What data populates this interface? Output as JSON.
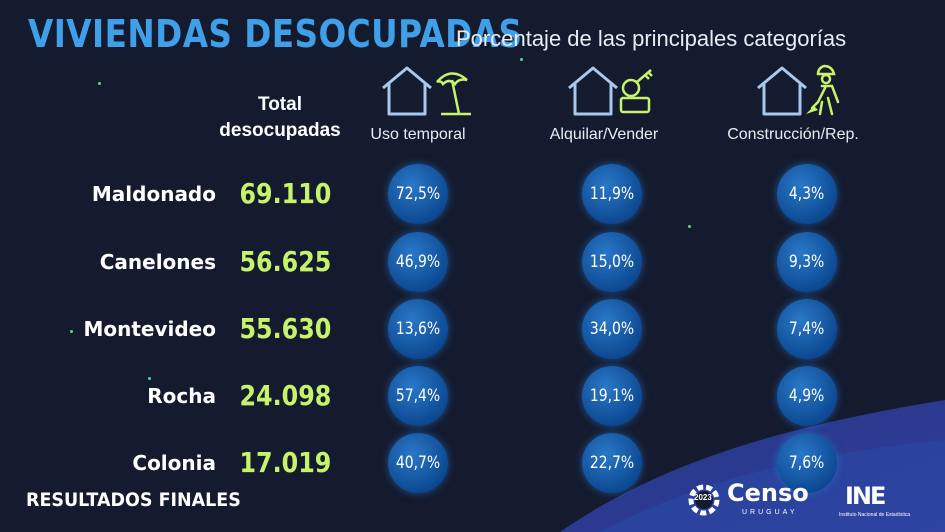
{
  "title": "VIVIENDAS DESOCUPADAS",
  "subtitle": "Porcentaje de las principales categorías",
  "total_header": [
    "Total",
    "desocupadas"
  ],
  "categories": [
    {
      "label": "Uso temporal",
      "icon": "house-umbrella-icon"
    },
    {
      "label": "Alquilar/Vender",
      "icon": "house-key-icon"
    },
    {
      "label": "Construcción/Rep.",
      "icon": "house-worker-icon"
    }
  ],
  "footer": "RESULTADOS FINALES",
  "logos": {
    "censo": {
      "word": "Censo",
      "year": "2023",
      "sub": "URUGUAY"
    },
    "ine": {
      "word": "INE",
      "sub": "Instituto Nacional de Estadística"
    }
  },
  "colors": {
    "background": "#141b2e",
    "title": "#3f9fe8",
    "total_value": "#c7f36a",
    "bubble": "#0d4a93",
    "icon_house": "#a9c8ee",
    "icon_accent": "#c7f36a"
  },
  "chart_data": {
    "type": "table",
    "rows": [
      {
        "label": "Maldonado",
        "total": "69.110",
        "values": [
          "72,5%",
          "11,9%",
          "4,3%"
        ]
      },
      {
        "label": "Canelones",
        "total": "56.625",
        "values": [
          "46,9%",
          "15,0%",
          "9,3%"
        ]
      },
      {
        "label": "Montevideo",
        "total": "55.630",
        "values": [
          "13,6%",
          "34,0%",
          "7,4%"
        ]
      },
      {
        "label": "Rocha",
        "total": "24.098",
        "values": [
          "57,4%",
          "19,1%",
          "4,9%"
        ]
      },
      {
        "label": "Colonia",
        "total": "17.019",
        "values": [
          "40,7%",
          "22,7%",
          "7,6%"
        ]
      }
    ]
  }
}
